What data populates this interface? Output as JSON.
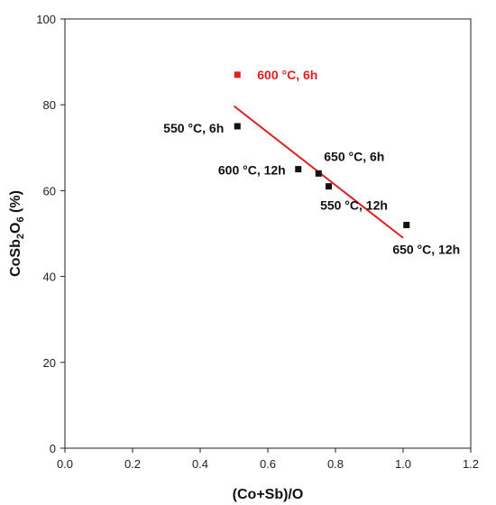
{
  "chart_data": {
    "type": "scatter",
    "xlabel": "(Co+Sb)/O",
    "ylabel_parts": [
      "CoSb",
      "2",
      "O",
      "6",
      " (%)"
    ],
    "xlim": [
      0.0,
      1.2
    ],
    "ylim": [
      0,
      100
    ],
    "x_ticks": [
      "0.0",
      "0.2",
      "0.4",
      "0.6",
      "0.8",
      "1.0",
      "1.2"
    ],
    "y_ticks": [
      "0",
      "20",
      "40",
      "60",
      "80",
      "100"
    ],
    "grid": false,
    "points": [
      {
        "x": 0.51,
        "y": 87,
        "label": "600 °C, 6h",
        "color": "#e02020"
      },
      {
        "x": 0.51,
        "y": 75,
        "label": "550 °C, 6h",
        "color": "#111111"
      },
      {
        "x": 0.69,
        "y": 65,
        "label": "600 °C, 12h",
        "color": "#111111"
      },
      {
        "x": 0.75,
        "y": 64,
        "label": "650 °C, 6h",
        "color": "#111111"
      },
      {
        "x": 0.78,
        "y": 61,
        "label": "550 °C, 12h",
        "color": "#111111"
      },
      {
        "x": 1.01,
        "y": 52,
        "label": "650 °C, 12h",
        "color": "#111111"
      }
    ],
    "fit_line": {
      "x": [
        0.5,
        1.0
      ],
      "y": [
        79.7,
        49.0
      ],
      "color": "#e02020"
    }
  }
}
